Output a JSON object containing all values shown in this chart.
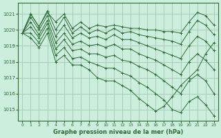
{
  "title": "Graphe pression niveau de la mer (hPa)",
  "bg_color": "#cceedd",
  "grid_color": "#aaccbb",
  "line_color": "#2d6a35",
  "xlim": [
    -0.5,
    23.5
  ],
  "ylim": [
    1014.3,
    1021.7
  ],
  "yticks": [
    1015,
    1016,
    1017,
    1018,
    1019,
    1020,
    1021
  ],
  "xticks": [
    0,
    1,
    2,
    3,
    4,
    5,
    6,
    7,
    8,
    9,
    10,
    11,
    12,
    13,
    14,
    15,
    16,
    17,
    18,
    19,
    20,
    21,
    22,
    23
  ],
  "series": [
    [
      1019.8,
      1021.0,
      1020.2,
      1021.1,
      1020.5,
      1021.0,
      1020.1,
      1020.5,
      1020.1,
      1020.3,
      1020.2,
      1020.3,
      1020.2,
      1020.1,
      1020.1,
      1020.0,
      1020.0,
      1019.9,
      1019.9,
      1019.8,
      1020.5,
      1021.1,
      1020.9,
      1020.3
    ],
    [
      1019.8,
      1021.0,
      1020.2,
      1021.2,
      1020.0,
      1020.8,
      1019.8,
      1020.2,
      1019.8,
      1020.0,
      1019.8,
      1020.1,
      1019.8,
      1019.9,
      1019.7,
      1019.6,
      1019.5,
      1019.4,
      1019.3,
      1019.1,
      1019.9,
      1020.6,
      1020.3,
      1019.7
    ],
    [
      1019.8,
      1020.8,
      1020.0,
      1020.9,
      1019.6,
      1020.3,
      1019.5,
      1019.8,
      1019.5,
      1019.6,
      1019.4,
      1019.7,
      1019.4,
      1019.4,
      1019.2,
      1019.0,
      1018.8,
      1018.6,
      1018.4,
      1018.2,
      1019.0,
      1019.6,
      1019.3,
      1018.7
    ],
    [
      1019.8,
      1020.5,
      1019.7,
      1020.6,
      1019.2,
      1019.8,
      1019.1,
      1019.3,
      1019.0,
      1019.1,
      1018.9,
      1019.1,
      1018.8,
      1018.8,
      1018.5,
      1018.3,
      1018.1,
      1017.8,
      1017.5,
      1017.2,
      1018.0,
      1018.5,
      1018.1,
      1017.5
    ],
    [
      1019.8,
      1020.2,
      1019.5,
      1020.4,
      1018.8,
      1019.4,
      1018.7,
      1018.8,
      1018.5,
      1018.5,
      1018.3,
      1018.4,
      1018.1,
      1018.0,
      1017.7,
      1017.5,
      1017.2,
      1016.8,
      1016.4,
      1016.0,
      1016.8,
      1017.2,
      1016.8,
      1016.0
    ],
    [
      1019.8,
      1019.8,
      1019.2,
      1020.1,
      1018.4,
      1018.9,
      1018.2,
      1018.3,
      1018.0,
      1017.8,
      1017.6,
      1017.6,
      1017.3,
      1017.1,
      1016.7,
      1016.4,
      1016.0,
      1015.6,
      1015.0,
      1014.8,
      1015.5,
      1015.8,
      1015.3,
      1014.6
    ],
    [
      1019.8,
      1019.5,
      1018.9,
      1019.8,
      1018.0,
      1018.4,
      1017.8,
      1017.8,
      1017.5,
      1017.0,
      1016.8,
      1016.8,
      1016.5,
      1016.2,
      1015.7,
      1015.3,
      1014.9,
      1015.2,
      1015.8,
      1016.5,
      1017.0,
      1017.5,
      1018.5,
      1019.2
    ]
  ]
}
